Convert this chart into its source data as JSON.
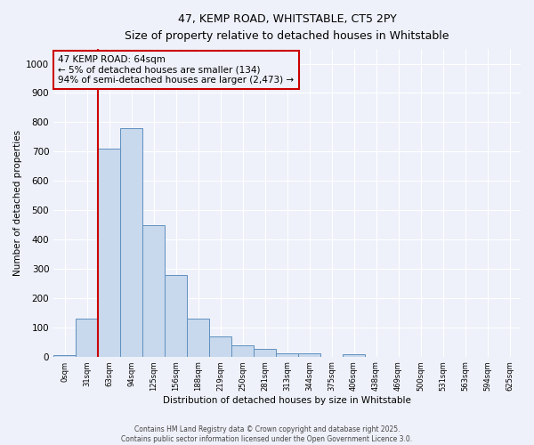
{
  "title": "47, KEMP ROAD, WHITSTABLE, CT5 2PY",
  "subtitle": "Size of property relative to detached houses in Whitstable",
  "xlabel": "Distribution of detached houses by size in Whitstable",
  "ylabel": "Number of detached properties",
  "bar_color": "#c8d8ed",
  "bar_edge_color": "#6090c0",
  "background_color": "#eef1f9",
  "grid_color": "#ffffff",
  "annotation_box_color": "#cc0000",
  "vline_color": "#cc0000",
  "categories": [
    "0sqm",
    "31sqm",
    "63sqm",
    "94sqm",
    "125sqm",
    "156sqm",
    "188sqm",
    "219sqm",
    "250sqm",
    "281sqm",
    "313sqm",
    "344sqm",
    "375sqm",
    "406sqm",
    "438sqm",
    "469sqm",
    "500sqm",
    "531sqm",
    "563sqm",
    "594sqm",
    "625sqm"
  ],
  "values": [
    5,
    130,
    710,
    780,
    450,
    280,
    130,
    70,
    38,
    25,
    10,
    10,
    0,
    7,
    0,
    0,
    0,
    0,
    0,
    0,
    0
  ],
  "ylim": [
    0,
    1050
  ],
  "yticks": [
    0,
    100,
    200,
    300,
    400,
    500,
    600,
    700,
    800,
    900,
    1000
  ],
  "property_bin_index": 2,
  "annotation_text": "47 KEMP ROAD: 64sqm\n← 5% of detached houses are smaller (134)\n94% of semi-detached houses are larger (2,473) →",
  "footer_line1": "Contains HM Land Registry data © Crown copyright and database right 2025.",
  "footer_line2": "Contains public sector information licensed under the Open Government Licence 3.0.",
  "fig_width": 6.0,
  "fig_height": 5.0,
  "dpi": 100
}
